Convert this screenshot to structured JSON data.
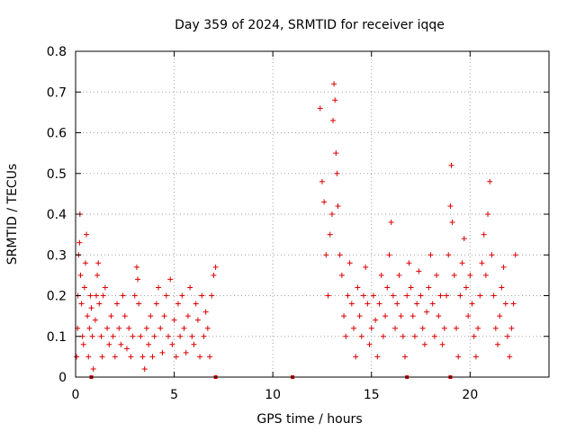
{
  "chart_data": {
    "type": "scatter",
    "title": "Day 359 of 2024, SRMTID for receiver iqqe",
    "xlabel": "GPS time / hours",
    "ylabel": "SRMTID / TECUs",
    "xlim": [
      0,
      24
    ],
    "ylim": [
      0,
      0.8
    ],
    "xticks": [
      0,
      5,
      10,
      15,
      20
    ],
    "yticks": [
      0,
      0.1,
      0.2,
      0.3,
      0.4,
      0.5,
      0.6,
      0.7,
      0.8
    ],
    "xtick_labels": [
      "0",
      "5",
      "10",
      "15",
      "20"
    ],
    "ytick_labels": [
      "0",
      "0.1",
      "0.2",
      "0.3",
      "0.4",
      "0.5",
      "0.6",
      "0.7",
      "0.8"
    ],
    "grid": true,
    "marker": "+",
    "series_color": "#dd0000",
    "points": [
      [
        0.05,
        0.05
      ],
      [
        0.1,
        0.12
      ],
      [
        0.12,
        0.2
      ],
      [
        0.15,
        0.3
      ],
      [
        0.2,
        0.33
      ],
      [
        0.22,
        0.4
      ],
      [
        0.25,
        0.25
      ],
      [
        0.3,
        0.18
      ],
      [
        0.35,
        0.1
      ],
      [
        0.4,
        0.08
      ],
      [
        0.45,
        0.22
      ],
      [
        0.5,
        0.28
      ],
      [
        0.55,
        0.35
      ],
      [
        0.6,
        0.15
      ],
      [
        0.65,
        0.05
      ],
      [
        0.7,
        0.12
      ],
      [
        0.75,
        0.2
      ],
      [
        0.8,
        0.17
      ],
      [
        0.85,
        0.1
      ],
      [
        0.9,
        0.02
      ],
      [
        1.0,
        0.14
      ],
      [
        1.05,
        0.2
      ],
      [
        1.1,
        0.25
      ],
      [
        1.15,
        0.28
      ],
      [
        1.2,
        0.18
      ],
      [
        1.3,
        0.1
      ],
      [
        1.35,
        0.05
      ],
      [
        1.4,
        0.2
      ],
      [
        1.5,
        0.22
      ],
      [
        1.6,
        0.12
      ],
      [
        1.7,
        0.08
      ],
      [
        1.8,
        0.15
      ],
      [
        1.9,
        0.1
      ],
      [
        2.0,
        0.05
      ],
      [
        2.1,
        0.18
      ],
      [
        2.2,
        0.12
      ],
      [
        2.3,
        0.08
      ],
      [
        2.4,
        0.2
      ],
      [
        2.5,
        0.15
      ],
      [
        2.6,
        0.07
      ],
      [
        2.7,
        0.12
      ],
      [
        2.8,
        0.05
      ],
      [
        2.9,
        0.1
      ],
      [
        3.0,
        0.2
      ],
      [
        3.1,
        0.27
      ],
      [
        3.15,
        0.24
      ],
      [
        3.2,
        0.18
      ],
      [
        3.3,
        0.1
      ],
      [
        3.4,
        0.05
      ],
      [
        3.5,
        0.02
      ],
      [
        3.6,
        0.12
      ],
      [
        3.7,
        0.08
      ],
      [
        3.8,
        0.15
      ],
      [
        3.9,
        0.05
      ],
      [
        4.0,
        0.1
      ],
      [
        4.1,
        0.18
      ],
      [
        4.2,
        0.22
      ],
      [
        4.3,
        0.12
      ],
      [
        4.4,
        0.06
      ],
      [
        4.5,
        0.15
      ],
      [
        4.6,
        0.2
      ],
      [
        4.7,
        0.1
      ],
      [
        4.8,
        0.24
      ],
      [
        4.9,
        0.08
      ],
      [
        5.0,
        0.14
      ],
      [
        5.1,
        0.05
      ],
      [
        5.2,
        0.18
      ],
      [
        5.3,
        0.1
      ],
      [
        5.4,
        0.2
      ],
      [
        5.5,
        0.12
      ],
      [
        5.6,
        0.06
      ],
      [
        5.7,
        0.15
      ],
      [
        5.8,
        0.22
      ],
      [
        5.9,
        0.1
      ],
      [
        6.0,
        0.08
      ],
      [
        6.1,
        0.18
      ],
      [
        6.2,
        0.14
      ],
      [
        6.3,
        0.05
      ],
      [
        6.4,
        0.2
      ],
      [
        6.5,
        0.1
      ],
      [
        6.6,
        0.16
      ],
      [
        6.7,
        0.12
      ],
      [
        6.8,
        0.05
      ],
      [
        6.9,
        0.2
      ],
      [
        7.0,
        0.25
      ],
      [
        7.1,
        0.27
      ],
      [
        12.4,
        0.66
      ],
      [
        12.5,
        0.48
      ],
      [
        12.6,
        0.43
      ],
      [
        12.7,
        0.3
      ],
      [
        12.8,
        0.2
      ],
      [
        12.9,
        0.35
      ],
      [
        13.0,
        0.4
      ],
      [
        13.05,
        0.63
      ],
      [
        13.1,
        0.72
      ],
      [
        13.15,
        0.68
      ],
      [
        13.2,
        0.55
      ],
      [
        13.25,
        0.5
      ],
      [
        13.3,
        0.42
      ],
      [
        13.4,
        0.3
      ],
      [
        13.5,
        0.25
      ],
      [
        13.6,
        0.15
      ],
      [
        13.7,
        0.1
      ],
      [
        13.8,
        0.2
      ],
      [
        13.9,
        0.28
      ],
      [
        14.0,
        0.18
      ],
      [
        14.1,
        0.12
      ],
      [
        14.2,
        0.05
      ],
      [
        14.3,
        0.22
      ],
      [
        14.4,
        0.15
      ],
      [
        14.5,
        0.1
      ],
      [
        14.6,
        0.2
      ],
      [
        14.7,
        0.27
      ],
      [
        14.8,
        0.18
      ],
      [
        14.9,
        0.08
      ],
      [
        15.0,
        0.12
      ],
      [
        15.1,
        0.2
      ],
      [
        15.2,
        0.14
      ],
      [
        15.3,
        0.05
      ],
      [
        15.4,
        0.18
      ],
      [
        15.5,
        0.25
      ],
      [
        15.6,
        0.1
      ],
      [
        15.7,
        0.15
      ],
      [
        15.8,
        0.22
      ],
      [
        15.9,
        0.3
      ],
      [
        16.0,
        0.38
      ],
      [
        16.1,
        0.2
      ],
      [
        16.2,
        0.12
      ],
      [
        16.3,
        0.18
      ],
      [
        16.4,
        0.25
      ],
      [
        16.5,
        0.15
      ],
      [
        16.6,
        0.1
      ],
      [
        16.7,
        0.05
      ],
      [
        16.8,
        0.2
      ],
      [
        16.9,
        0.28
      ],
      [
        17.0,
        0.22
      ],
      [
        17.1,
        0.15
      ],
      [
        17.2,
        0.1
      ],
      [
        17.3,
        0.18
      ],
      [
        17.4,
        0.26
      ],
      [
        17.5,
        0.2
      ],
      [
        17.6,
        0.12
      ],
      [
        17.7,
        0.08
      ],
      [
        17.8,
        0.16
      ],
      [
        17.9,
        0.22
      ],
      [
        18.0,
        0.3
      ],
      [
        18.1,
        0.18
      ],
      [
        18.2,
        0.1
      ],
      [
        18.3,
        0.25
      ],
      [
        18.4,
        0.15
      ],
      [
        18.5,
        0.2
      ],
      [
        18.6,
        0.08
      ],
      [
        18.7,
        0.12
      ],
      [
        18.8,
        0.2
      ],
      [
        18.9,
        0.3
      ],
      [
        19.0,
        0.42
      ],
      [
        19.05,
        0.52
      ],
      [
        19.1,
        0.38
      ],
      [
        19.2,
        0.25
      ],
      [
        19.3,
        0.12
      ],
      [
        19.4,
        0.05
      ],
      [
        19.5,
        0.2
      ],
      [
        19.6,
        0.28
      ],
      [
        19.7,
        0.34
      ],
      [
        19.8,
        0.22
      ],
      [
        19.9,
        0.15
      ],
      [
        20.0,
        0.25
      ],
      [
        20.1,
        0.18
      ],
      [
        20.2,
        0.1
      ],
      [
        20.3,
        0.05
      ],
      [
        20.4,
        0.12
      ],
      [
        20.5,
        0.2
      ],
      [
        20.6,
        0.28
      ],
      [
        20.7,
        0.35
      ],
      [
        20.8,
        0.25
      ],
      [
        20.9,
        0.4
      ],
      [
        21.0,
        0.48
      ],
      [
        21.1,
        0.3
      ],
      [
        21.2,
        0.2
      ],
      [
        21.3,
        0.12
      ],
      [
        21.4,
        0.08
      ],
      [
        21.5,
        0.15
      ],
      [
        21.6,
        0.22
      ],
      [
        21.7,
        0.27
      ],
      [
        21.8,
        0.18
      ],
      [
        21.9,
        0.1
      ],
      [
        22.0,
        0.05
      ],
      [
        22.1,
        0.12
      ],
      [
        22.2,
        0.18
      ],
      [
        22.3,
        0.3
      ]
    ],
    "zero_markers": [
      0.8,
      7.1,
      11.0,
      16.8,
      19.0
    ]
  }
}
